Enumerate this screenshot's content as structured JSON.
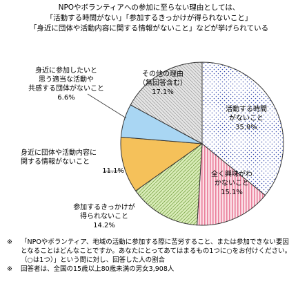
{
  "headline": {
    "line1": "NPOやボランティアへの参加に至らない理由としては、",
    "line2": "「活動する時間がない」「参加するきっかけが得られないこと」",
    "line3": "「身近に団体や活動内容に関する情報がないこと」などが挙げられている"
  },
  "chart_data": {
    "type": "pie",
    "slices": [
      {
        "label_lines": [
          "活動する時間",
          "がないこと"
        ],
        "value_text": "35.9%",
        "value": 35.9,
        "color": "#ffffff",
        "pattern": "dots-blue"
      },
      {
        "label_lines": [
          "全く興味がわ",
          "かないこと"
        ],
        "value_text": "15.1%",
        "value": 15.1,
        "color": "#f9c6d3",
        "pattern": "stripes-pink"
      },
      {
        "label_lines": [
          "参加するきっかけが",
          "得られないこと"
        ],
        "value_text": "14.2%",
        "value": 14.2,
        "color": "#cde6a6",
        "pattern": "hatch-green"
      },
      {
        "label_lines": [
          "身近に団体や活動内容に",
          "関する情報がないこと"
        ],
        "value_text": "11.1%",
        "value": 11.1,
        "color": "#f5c15a",
        "pattern": "solid"
      },
      {
        "label_lines": [
          "身近に参加したいと",
          "思う適当な活動や",
          "共感する団体がないこと"
        ],
        "value_text": "6.6%",
        "value": 6.6,
        "color": "#a9d6f3",
        "pattern": "solid"
      },
      {
        "label_lines": [
          "その他の理由",
          "（無回答含む）"
        ],
        "value_text": "17.1%",
        "value": 17.1,
        "color": "#dcdcdc",
        "pattern": "hatch-gray"
      }
    ]
  },
  "notes": [
    {
      "mark": "※",
      "text": "「NPOやボランティア、地域の活動に参加する際に苦労すること、または参加できない要因となることはどんなことですか。あなたにとってあてはまるもの1つに○をお付けください。（○は1つ）」という問に対し、回答した人の割合"
    },
    {
      "mark": "※",
      "text": "回答者は、全国の15歳以上80歳未満の男女3,908人"
    }
  ]
}
